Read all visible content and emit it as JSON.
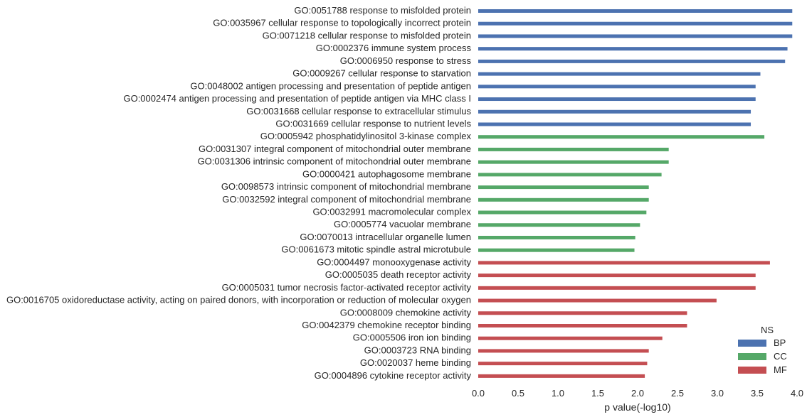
{
  "chart_data": {
    "type": "bar",
    "orientation": "horizontal",
    "xlabel": "p value(-log10)",
    "xlim": [
      0,
      4
    ],
    "xticks": [
      "0.0",
      "0.5",
      "1.0",
      "1.5",
      "2.0",
      "2.5",
      "3.0",
      "3.5",
      "4.0"
    ],
    "grid": false,
    "legend": {
      "title": "NS",
      "placement": "lower-right",
      "entries": [
        {
          "name": "BP",
          "color": "#4c72b0"
        },
        {
          "name": "CC",
          "color": "#55a868"
        },
        {
          "name": "MF",
          "color": "#c44e52"
        }
      ]
    },
    "bars": [
      {
        "label": "GO:0051788 response to misfolded protein",
        "value": 3.94,
        "ns": "BP"
      },
      {
        "label": "GO:0035967 cellular response to topologically incorrect protein",
        "value": 3.94,
        "ns": "BP"
      },
      {
        "label": "GO:0071218 cellular response to misfolded protein",
        "value": 3.94,
        "ns": "BP"
      },
      {
        "label": "GO:0002376 immune system process",
        "value": 3.88,
        "ns": "BP"
      },
      {
        "label": "GO:0006950 response to stress",
        "value": 3.85,
        "ns": "BP"
      },
      {
        "label": "GO:0009267 cellular response to starvation",
        "value": 3.54,
        "ns": "BP"
      },
      {
        "label": "GO:0048002 antigen processing and presentation of peptide antigen",
        "value": 3.48,
        "ns": "BP"
      },
      {
        "label": "GO:0002474 antigen processing and presentation of peptide antigen via MHC class I",
        "value": 3.48,
        "ns": "BP"
      },
      {
        "label": "GO:0031668 cellular response to extracellular stimulus",
        "value": 3.42,
        "ns": "BP"
      },
      {
        "label": "GO:0031669 cellular response to nutrient levels",
        "value": 3.42,
        "ns": "BP"
      },
      {
        "label": "GO:0005942 phosphatidylinositol 3-kinase complex",
        "value": 3.59,
        "ns": "CC"
      },
      {
        "label": "GO:0031307 integral component of mitochondrial outer membrane",
        "value": 2.39,
        "ns": "CC"
      },
      {
        "label": "GO:0031306 intrinsic component of mitochondrial outer membrane",
        "value": 2.39,
        "ns": "CC"
      },
      {
        "label": "GO:0000421 autophagosome membrane",
        "value": 2.3,
        "ns": "CC"
      },
      {
        "label": "GO:0098573 intrinsic component of mitochondrial membrane",
        "value": 2.14,
        "ns": "CC"
      },
      {
        "label": "GO:0032592 integral component of mitochondrial membrane",
        "value": 2.14,
        "ns": "CC"
      },
      {
        "label": "GO:0032991 macromolecular complex",
        "value": 2.11,
        "ns": "CC"
      },
      {
        "label": "GO:0005774 vacuolar membrane",
        "value": 2.03,
        "ns": "CC"
      },
      {
        "label": "GO:0070013 intracellular organelle lumen",
        "value": 1.97,
        "ns": "CC"
      },
      {
        "label": "GO:0061673 mitotic spindle astral microtubule",
        "value": 1.96,
        "ns": "CC"
      },
      {
        "label": "GO:0004497 monooxygenase activity",
        "value": 3.66,
        "ns": "MF"
      },
      {
        "label": "GO:0005035 death receptor activity",
        "value": 3.48,
        "ns": "MF"
      },
      {
        "label": "GO:0005031 tumor necrosis factor-activated receptor activity",
        "value": 3.48,
        "ns": "MF"
      },
      {
        "label": "GO:0016705 oxidoreductase activity, acting on paired donors, with incorporation or reduction of molecular oxygen",
        "value": 2.99,
        "ns": "MF"
      },
      {
        "label": "GO:0008009 chemokine activity",
        "value": 2.62,
        "ns": "MF"
      },
      {
        "label": "GO:0042379 chemokine receptor binding",
        "value": 2.62,
        "ns": "MF"
      },
      {
        "label": "GO:0005506 iron ion binding",
        "value": 2.31,
        "ns": "MF"
      },
      {
        "label": "GO:0003723 RNA binding",
        "value": 2.14,
        "ns": "MF"
      },
      {
        "label": "GO:0020037 heme binding",
        "value": 2.12,
        "ns": "MF"
      },
      {
        "label": "GO:0004896 cytokine receptor activity",
        "value": 2.09,
        "ns": "MF"
      }
    ]
  }
}
